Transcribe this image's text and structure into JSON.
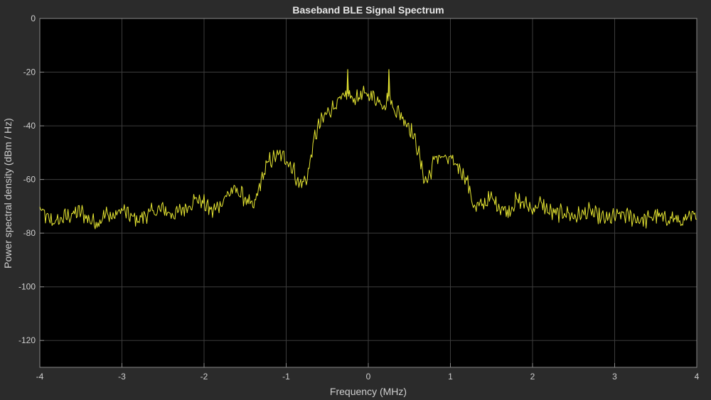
{
  "chart_data": {
    "type": "line",
    "title": "Baseband BLE Signal Spectrum",
    "xlabel": "Frequency (MHz)",
    "ylabel": "Power spectral density (dBm / Hz)",
    "xlim": [
      -4,
      4
    ],
    "ylim": [
      -130,
      0
    ],
    "xticks": [
      -4,
      -3,
      -2,
      -1,
      0,
      1,
      2,
      3,
      4
    ],
    "yticks": [
      -120,
      -100,
      -80,
      -60,
      -40,
      -20,
      0
    ],
    "grid": true,
    "colors": {
      "figure_background": "#2b2b2b",
      "axes_background": "#000000",
      "grid": "#3c3c3c",
      "axes_frame": "#8a8a8a",
      "line": "#e6e632"
    },
    "series": [
      {
        "x": [
          -4.0,
          -3.9,
          -3.8,
          -3.7,
          -3.6,
          -3.5,
          -3.4,
          -3.3,
          -3.2,
          -3.1,
          -3.0,
          -2.9,
          -2.8,
          -2.7,
          -2.6,
          -2.5,
          -2.4,
          -2.3,
          -2.2,
          -2.1,
          -2.0,
          -1.9,
          -1.8,
          -1.7,
          -1.6,
          -1.5,
          -1.4,
          -1.3,
          -1.25,
          -1.2,
          -1.1,
          -1.0,
          -0.9,
          -0.85,
          -0.8,
          -0.75,
          -0.7,
          -0.65,
          -0.6,
          -0.5,
          -0.4,
          -0.3,
          -0.25,
          -0.2,
          -0.1,
          0.0,
          0.1,
          0.2,
          0.25,
          0.3,
          0.4,
          0.5,
          0.6,
          0.65,
          0.7,
          0.75,
          0.8,
          0.85,
          0.9,
          1.0,
          1.1,
          1.2,
          1.25,
          1.3,
          1.4,
          1.5,
          1.6,
          1.7,
          1.8,
          1.9,
          2.0,
          2.1,
          2.2,
          2.3,
          2.4,
          2.5,
          2.6,
          2.7,
          2.8,
          2.9,
          3.0,
          3.1,
          3.2,
          3.3,
          3.4,
          3.5,
          3.6,
          3.7,
          3.8,
          3.9,
          4.0
        ],
        "values": [
          -71,
          -75,
          -76,
          -74,
          -73,
          -72,
          -75,
          -76,
          -73,
          -74,
          -71,
          -74,
          -75,
          -73,
          -72,
          -71,
          -73,
          -72,
          -70,
          -67,
          -69,
          -72,
          -69,
          -65,
          -64,
          -67,
          -71,
          -60,
          -56,
          -53,
          -51,
          -52,
          -57,
          -62,
          -61,
          -60,
          -52,
          -44,
          -40,
          -35,
          -32,
          -30,
          -28,
          -30,
          -29,
          -28,
          -30,
          -32,
          -29,
          -33,
          -36,
          -40,
          -48,
          -56,
          -61,
          -58,
          -53,
          -51,
          -52,
          -53,
          -55,
          -60,
          -66,
          -71,
          -69,
          -67,
          -70,
          -72,
          -68,
          -69,
          -71,
          -69,
          -72,
          -73,
          -72,
          -74,
          -73,
          -72,
          -74,
          -75,
          -74,
          -73,
          -74,
          -75,
          -75,
          -73,
          -75,
          -74,
          -76,
          -75,
          -73
        ],
        "spikes": [
          {
            "x": -0.25,
            "value": -19
          },
          {
            "x": 0.25,
            "value": -19
          }
        ]
      }
    ]
  }
}
